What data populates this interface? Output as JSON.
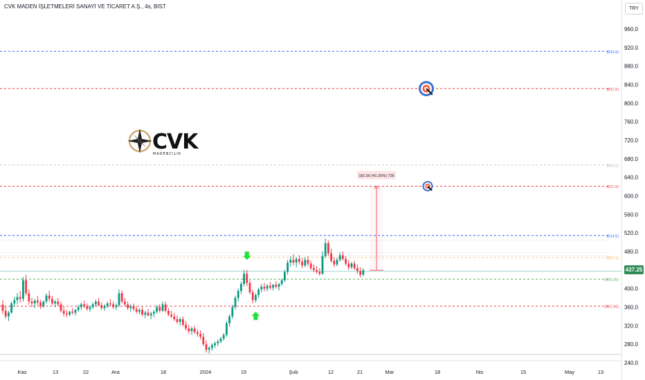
{
  "header": {
    "title": "CVK MADEN İŞLETMELERİ SANAYİ VE TİCARET A.Ş., 4s, BIST",
    "currency": "TRY"
  },
  "logo": {
    "main": "CVK",
    "sub": "MADENCILIK"
  },
  "colors": {
    "up": "#089981",
    "down": "#f23645",
    "blue_line": "#2962ff",
    "red_line": "#f23645",
    "green_line": "#4caf50",
    "gray_line": "#b2b5be",
    "orange_line": "#ffb74d",
    "measure": "#f7525f"
  },
  "chart_data": {
    "type": "candlestick",
    "ylim": [
      240,
      975
    ],
    "y_ticks": [
      "960.0",
      "920.0",
      "880.0",
      "840.0",
      "800.0",
      "760.0",
      "720.0",
      "680.0",
      "640.0",
      "600.0",
      "560.0",
      "520.0",
      "480.0",
      "440.0",
      "400.0",
      "360.0",
      "320.0",
      "280.0",
      "240.0"
    ],
    "y_tick_values": [
      960,
      920,
      880,
      840,
      800,
      760,
      720,
      680,
      640,
      600,
      560,
      520,
      480,
      440,
      400,
      360,
      320,
      280,
      240
    ],
    "x_labels": [
      "Kas",
      "13",
      "22",
      "Ara",
      "18",
      "2024",
      "15",
      "Şub",
      "12",
      "21",
      "Mar",
      "18",
      "Nis",
      "15",
      "May",
      "13"
    ],
    "current_price": "437.25",
    "current_price_value": 437.25,
    "levels": [
      {
        "value": 912.0,
        "label": "(912.0)",
        "style": "blue"
      },
      {
        "value": 831.5,
        "label": "(831.5)",
        "style": "red"
      },
      {
        "value": 666.5,
        "label": "(666.5)",
        "style": "gray"
      },
      {
        "value": 621.0,
        "label": "(621.0)",
        "style": "red"
      },
      {
        "value": 514.5,
        "label": "(514.5)",
        "style": "blue"
      },
      {
        "value": 467.0,
        "label": "(467.0)",
        "style": "orange"
      },
      {
        "value": 420.25,
        "label": "(420.25)",
        "style": "green"
      },
      {
        "value": 362.0,
        "label": "(362.00)",
        "style": "red"
      }
    ],
    "measurement": {
      "from": 439.5,
      "to": 621.0,
      "label": "181.50 (41.25%) 726"
    },
    "candles": [
      [
        0,
        365,
        375,
        345,
        352
      ],
      [
        1,
        352,
        362,
        335,
        340
      ],
      [
        2,
        340,
        352,
        330,
        348
      ],
      [
        3,
        348,
        372,
        346,
        368
      ],
      [
        4,
        368,
        382,
        360,
        375
      ],
      [
        5,
        375,
        390,
        366,
        382
      ],
      [
        6,
        382,
        395,
        370,
        378
      ],
      [
        7,
        378,
        425,
        372,
        418
      ],
      [
        8,
        418,
        430,
        385,
        390
      ],
      [
        9,
        390,
        398,
        365,
        372
      ],
      [
        10,
        372,
        380,
        360,
        368
      ],
      [
        11,
        368,
        378,
        358,
        374
      ],
      [
        12,
        374,
        384,
        364,
        370
      ],
      [
        13,
        370,
        376,
        356,
        362
      ],
      [
        14,
        362,
        374,
        358,
        372
      ],
      [
        15,
        372,
        390,
        368,
        385
      ],
      [
        16,
        385,
        395,
        372,
        378
      ],
      [
        17,
        378,
        384,
        364,
        368
      ],
      [
        18,
        368,
        376,
        360,
        372
      ],
      [
        19,
        372,
        380,
        362,
        366
      ],
      [
        20,
        366,
        372,
        348,
        352
      ],
      [
        21,
        352,
        360,
        340,
        346
      ],
      [
        22,
        346,
        354,
        338,
        344
      ],
      [
        23,
        344,
        352,
        340,
        350
      ],
      [
        24,
        350,
        358,
        344,
        348
      ],
      [
        25,
        348,
        356,
        342,
        354
      ],
      [
        26,
        354,
        364,
        350,
        360
      ],
      [
        27,
        360,
        370,
        354,
        366
      ],
      [
        28,
        366,
        374,
        358,
        362
      ],
      [
        29,
        362,
        368,
        352,
        356
      ],
      [
        30,
        356,
        364,
        350,
        360
      ],
      [
        31,
        360,
        370,
        356,
        366
      ],
      [
        32,
        366,
        376,
        360,
        372
      ],
      [
        33,
        372,
        380,
        362,
        364
      ],
      [
        34,
        364,
        370,
        354,
        358
      ],
      [
        35,
        358,
        366,
        352,
        362
      ],
      [
        36,
        362,
        372,
        358,
        368
      ],
      [
        37,
        368,
        378,
        362,
        366
      ],
      [
        38,
        366,
        372,
        356,
        360
      ],
      [
        39,
        360,
        368,
        354,
        364
      ],
      [
        40,
        364,
        398,
        360,
        390
      ],
      [
        41,
        390,
        396,
        368,
        372
      ],
      [
        42,
        372,
        380,
        362,
        366
      ],
      [
        43,
        366,
        372,
        354,
        358
      ],
      [
        44,
        358,
        366,
        350,
        362
      ],
      [
        45,
        362,
        368,
        352,
        356
      ],
      [
        46,
        356,
        362,
        346,
        350
      ],
      [
        47,
        350,
        358,
        344,
        354
      ],
      [
        48,
        354,
        360,
        340,
        344
      ],
      [
        49,
        344,
        352,
        336,
        348
      ],
      [
        50,
        348,
        356,
        340,
        342
      ],
      [
        51,
        342,
        350,
        334,
        346
      ],
      [
        52,
        346,
        354,
        338,
        350
      ],
      [
        53,
        350,
        364,
        346,
        360
      ],
      [
        54,
        360,
        366,
        348,
        352
      ],
      [
        55,
        352,
        372,
        350,
        366
      ],
      [
        56,
        366,
        372,
        348,
        352
      ],
      [
        57,
        352,
        358,
        340,
        344
      ],
      [
        58,
        344,
        352,
        336,
        340
      ],
      [
        59,
        340,
        348,
        330,
        334
      ],
      [
        60,
        334,
        342,
        324,
        328
      ],
      [
        61,
        328,
        338,
        320,
        334
      ],
      [
        62,
        334,
        340,
        318,
        322
      ],
      [
        63,
        322,
        330,
        310,
        314
      ],
      [
        64,
        314,
        322,
        302,
        308
      ],
      [
        65,
        308,
        318,
        300,
        314
      ],
      [
        66,
        314,
        320,
        302,
        306
      ],
      [
        67,
        306,
        312,
        296,
        302
      ],
      [
        68,
        302,
        310,
        290,
        296
      ],
      [
        69,
        296,
        304,
        276,
        280
      ],
      [
        70,
        280,
        288,
        262,
        268
      ],
      [
        71,
        268,
        276,
        260,
        272
      ],
      [
        72,
        272,
        282,
        266,
        278
      ],
      [
        73,
        278,
        286,
        272,
        282
      ],
      [
        74,
        282,
        290,
        276,
        286
      ],
      [
        75,
        286,
        296,
        282,
        292
      ],
      [
        76,
        292,
        304,
        288,
        300
      ],
      [
        77,
        300,
        330,
        296,
        325
      ],
      [
        78,
        325,
        345,
        318,
        340
      ],
      [
        79,
        340,
        365,
        335,
        360
      ],
      [
        80,
        360,
        385,
        355,
        380
      ],
      [
        81,
        380,
        400,
        372,
        395
      ],
      [
        82,
        395,
        415,
        388,
        410
      ],
      [
        83,
        410,
        440,
        405,
        432
      ],
      [
        84,
        432,
        440,
        405,
        412
      ],
      [
        85,
        412,
        418,
        388,
        392
      ],
      [
        86,
        392,
        398,
        368,
        375
      ],
      [
        87,
        375,
        390,
        370,
        386
      ],
      [
        88,
        386,
        402,
        380,
        398
      ],
      [
        89,
        398,
        410,
        392,
        404
      ],
      [
        90,
        404,
        412,
        394,
        400
      ],
      [
        91,
        400,
        410,
        394,
        406
      ],
      [
        92,
        406,
        414,
        398,
        402
      ],
      [
        93,
        402,
        410,
        396,
        408
      ],
      [
        94,
        408,
        416,
        400,
        404
      ],
      [
        95,
        404,
        412,
        396,
        410
      ],
      [
        96,
        410,
        422,
        406,
        418
      ],
      [
        97,
        418,
        440,
        414,
        436
      ],
      [
        98,
        436,
        462,
        430,
        456
      ],
      [
        99,
        456,
        470,
        448,
        462
      ],
      [
        100,
        462,
        474,
        450,
        456
      ],
      [
        101,
        456,
        468,
        446,
        464
      ],
      [
        102,
        464,
        472,
        452,
        458
      ],
      [
        103,
        458,
        466,
        444,
        450
      ],
      [
        104,
        450,
        468,
        446,
        462
      ],
      [
        105,
        462,
        470,
        448,
        454
      ],
      [
        106,
        454,
        460,
        440,
        444
      ],
      [
        107,
        444,
        452,
        436,
        440
      ],
      [
        108,
        440,
        448,
        432,
        436
      ],
      [
        109,
        436,
        444,
        428,
        432
      ],
      [
        110,
        432,
        480,
        430,
        470
      ],
      [
        111,
        470,
        508,
        466,
        498
      ],
      [
        112,
        498,
        504,
        470,
        476
      ],
      [
        113,
        476,
        486,
        456,
        460
      ],
      [
        114,
        460,
        468,
        446,
        452
      ],
      [
        115,
        452,
        466,
        448,
        462
      ],
      [
        116,
        462,
        478,
        458,
        472
      ],
      [
        117,
        472,
        480,
        460,
        464
      ],
      [
        118,
        464,
        470,
        450,
        454
      ],
      [
        119,
        454,
        462,
        440,
        446
      ],
      [
        120,
        446,
        458,
        442,
        454
      ],
      [
        121,
        454,
        460,
        440,
        444
      ],
      [
        122,
        444,
        452,
        432,
        438
      ],
      [
        123,
        438,
        446,
        424,
        430
      ],
      [
        124,
        430,
        444,
        426,
        440
      ]
    ],
    "arrows": [
      {
        "x": 84,
        "value": 462,
        "dir": "down"
      },
      {
        "x": 87,
        "value": 350,
        "dir": "up"
      }
    ],
    "targets": [
      {
        "value": 831.5,
        "x": 152
      },
      {
        "value": 621.0,
        "x": 153
      }
    ]
  }
}
